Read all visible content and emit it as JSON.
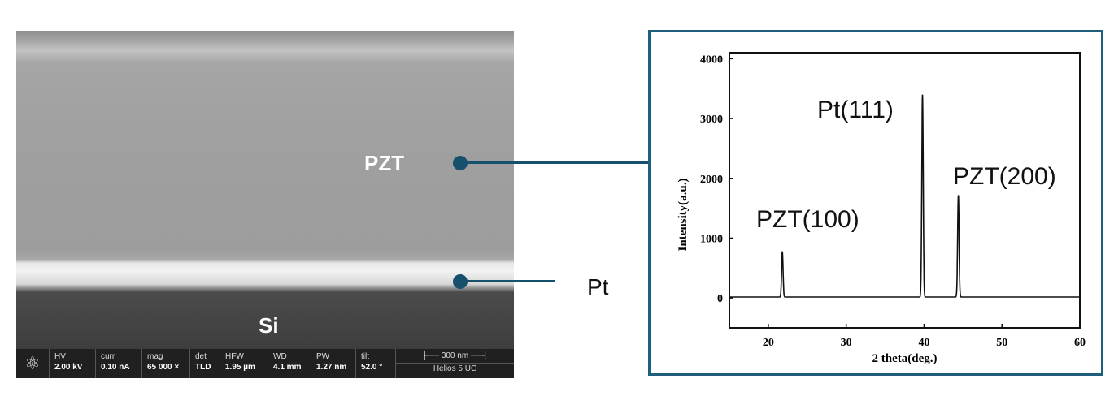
{
  "sem": {
    "labels": {
      "pzt": "PZT",
      "si": "Si",
      "pt": "Pt"
    },
    "info_bar": [
      {
        "k": "HV",
        "v": "2.00 kV"
      },
      {
        "k": "curr",
        "v": "0.10 nA"
      },
      {
        "k": "mag",
        "v": "65 000 ×"
      },
      {
        "k": "det",
        "v": "TLD"
      },
      {
        "k": "HFW",
        "v": "1.95 µm"
      },
      {
        "k": "WD",
        "v": "4.1 mm"
      },
      {
        "k": "PW",
        "v": "1.27 nm"
      },
      {
        "k": "tilt",
        "v": "52.0 °"
      }
    ],
    "scale_bar": "300 nm",
    "instrument": "Helios 5 UC",
    "logo_icon": "atom-icon"
  },
  "colors": {
    "connector": "#17506d",
    "frame": "#1f5f7d"
  },
  "chart_data": {
    "type": "line",
    "xlabel": "2 theta(deg.)",
    "ylabel": "Intensity(a.u.)",
    "xlim": [
      15,
      60
    ],
    "ylim": [
      -500,
      4100
    ],
    "xticks": [
      20,
      30,
      40,
      50,
      60
    ],
    "yticks": [
      0,
      1000,
      2000,
      3000,
      4000
    ],
    "baseline": 15,
    "peaks": [
      {
        "x": 21.8,
        "y": 780,
        "label": "PZT(100)"
      },
      {
        "x": 39.8,
        "y": 3400,
        "label": "Pt(111)"
      },
      {
        "x": 44.4,
        "y": 1720,
        "label": "PZT(200)"
      }
    ],
    "grid": false
  }
}
